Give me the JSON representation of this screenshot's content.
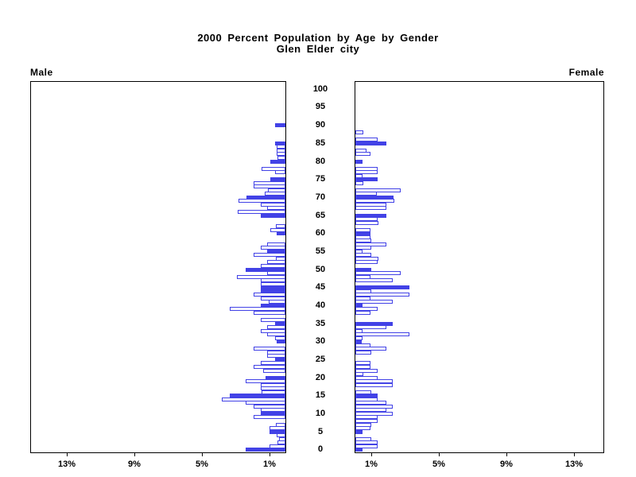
{
  "title": {
    "line1": "2000 Percent Population by Age by Gender",
    "line2": "Glen Elder city"
  },
  "panel_labels": {
    "left": "Male",
    "right": "Female"
  },
  "chart_data": {
    "type": "bar",
    "variant": "population-pyramid",
    "title": "2000 Percent Population by Age by Gender",
    "subtitle": "Glen Elder city",
    "unit": "percent of gender total, one bar per single year of age",
    "legend": "bars at ages that are multiples of five are drawn solid blue; other ages are white with blue outline",
    "colors": {
      "bar_outline": "#4242e6",
      "bar_fill": "#4242e6",
      "bar_empty_fill": "#ffffff",
      "frame": "#000000"
    },
    "x_axis": {
      "tick_percents": [
        1,
        5,
        9,
        13
      ],
      "tick_label_suffix": "%",
      "max_percent": 15.2,
      "left_panel_direction": "leftward",
      "right_panel_direction": "rightward"
    },
    "y_axis": {
      "min_age": 0,
      "max_age": 100,
      "label_step": 5,
      "tick_labels": [
        "0",
        "5",
        "10",
        "15",
        "20",
        "25",
        "30",
        "35",
        "40",
        "45",
        "50",
        "55",
        "60",
        "65",
        "70",
        "75",
        "80",
        "85",
        "90",
        "95",
        "100"
      ]
    },
    "series": [
      {
        "name": "Male",
        "side": "left",
        "bars": [
          [
            0,
            2.36,
            1
          ],
          [
            1,
            0.94,
            0
          ],
          [
            2,
            0.47,
            0
          ],
          [
            3,
            0.39,
            0
          ],
          [
            4,
            0.52,
            0
          ],
          [
            5,
            0.94,
            1
          ],
          [
            6,
            0.94,
            0
          ],
          [
            7,
            0.55,
            0
          ],
          [
            8,
            0,
            0
          ],
          [
            9,
            1.89,
            0
          ],
          [
            10,
            1.46,
            1
          ],
          [
            11,
            1.46,
            0
          ],
          [
            12,
            1.89,
            0
          ],
          [
            13,
            2.36,
            0
          ],
          [
            14,
            3.77,
            0
          ],
          [
            15,
            3.3,
            1
          ],
          [
            16,
            1.4,
            0
          ],
          [
            17,
            1.46,
            0
          ],
          [
            18,
            1.46,
            0
          ],
          [
            19,
            2.36,
            0
          ],
          [
            20,
            1.2,
            1
          ],
          [
            21,
            0,
            0
          ],
          [
            22,
            1.3,
            0
          ],
          [
            23,
            1.89,
            0
          ],
          [
            24,
            1.46,
            0
          ],
          [
            25,
            0.6,
            1
          ],
          [
            26,
            1.07,
            0
          ],
          [
            27,
            1.07,
            0
          ],
          [
            28,
            1.89,
            0
          ],
          [
            29,
            0,
            0
          ],
          [
            30,
            0.52,
            1
          ],
          [
            31,
            0.6,
            0
          ],
          [
            32,
            1.07,
            0
          ],
          [
            33,
            1.46,
            0
          ],
          [
            34,
            1.07,
            0
          ],
          [
            35,
            0.6,
            1
          ],
          [
            36,
            1.46,
            0
          ],
          [
            37,
            0,
            0
          ],
          [
            38,
            1.89,
            0
          ],
          [
            39,
            3.3,
            0
          ],
          [
            40,
            1.46,
            1
          ],
          [
            41,
            1.0,
            0
          ],
          [
            42,
            1.46,
            0
          ],
          [
            43,
            1.89,
            0
          ],
          [
            44,
            1.45,
            1
          ],
          [
            45,
            1.45,
            1
          ],
          [
            46,
            1.45,
            0
          ],
          [
            47,
            1.45,
            0
          ],
          [
            48,
            2.86,
            0
          ],
          [
            49,
            1.07,
            0
          ],
          [
            50,
            2.36,
            1
          ],
          [
            51,
            1.45,
            0
          ],
          [
            52,
            1.07,
            0
          ],
          [
            53,
            0.55,
            0
          ],
          [
            54,
            1.89,
            0
          ],
          [
            55,
            1.1,
            1
          ],
          [
            56,
            1.45,
            0
          ],
          [
            57,
            1.07,
            0
          ],
          [
            58,
            0,
            0
          ],
          [
            59,
            0,
            0
          ],
          [
            60,
            0.52,
            1
          ],
          [
            61,
            0.91,
            0
          ],
          [
            62,
            0.55,
            0
          ],
          [
            63,
            0,
            0
          ],
          [
            64,
            0,
            0
          ],
          [
            65,
            1.45,
            1
          ],
          [
            66,
            2.83,
            0
          ],
          [
            67,
            1.07,
            0
          ],
          [
            68,
            1.45,
            0
          ],
          [
            69,
            2.8,
            0
          ],
          [
            70,
            2.33,
            1
          ],
          [
            71,
            1.23,
            0
          ],
          [
            72,
            1.02,
            0
          ],
          [
            73,
            1.88,
            0
          ],
          [
            74,
            1.88,
            0
          ],
          [
            75,
            0.91,
            1
          ],
          [
            76,
            0,
            0
          ],
          [
            77,
            0.6,
            0
          ],
          [
            78,
            1.4,
            0
          ],
          [
            79,
            0,
            0
          ],
          [
            80,
            0.91,
            1
          ],
          [
            81,
            0.45,
            0
          ],
          [
            82,
            0.5,
            0
          ],
          [
            83,
            0.5,
            0
          ],
          [
            84,
            0.5,
            0
          ],
          [
            85,
            0.6,
            1
          ],
          [
            86,
            0,
            0
          ],
          [
            87,
            0,
            0
          ],
          [
            88,
            0,
            0
          ],
          [
            89,
            0,
            0
          ],
          [
            90,
            0.6,
            1
          ]
        ]
      },
      {
        "name": "Female",
        "side": "right",
        "bars": [
          [
            0,
            0.44,
            1
          ],
          [
            1,
            1.33,
            0
          ],
          [
            2,
            1.33,
            0
          ],
          [
            3,
            0.94,
            0
          ],
          [
            4,
            0,
            0
          ],
          [
            5,
            0.44,
            1
          ],
          [
            6,
            0.91,
            0
          ],
          [
            7,
            0.94,
            0
          ],
          [
            8,
            1.33,
            0
          ],
          [
            9,
            1.33,
            0
          ],
          [
            10,
            2.23,
            0
          ],
          [
            11,
            1.84,
            0
          ],
          [
            12,
            2.23,
            0
          ],
          [
            13,
            1.84,
            0
          ],
          [
            14,
            1.33,
            0
          ],
          [
            15,
            1.33,
            1
          ],
          [
            16,
            0.94,
            0
          ],
          [
            17,
            0,
            0
          ],
          [
            18,
            2.23,
            0
          ],
          [
            19,
            2.23,
            0
          ],
          [
            20,
            1.33,
            0
          ],
          [
            21,
            0.47,
            0
          ],
          [
            22,
            1.3,
            0
          ],
          [
            23,
            0.91,
            0
          ],
          [
            24,
            0.91,
            0
          ],
          [
            25,
            0,
            0
          ],
          [
            26,
            0,
            0
          ],
          [
            27,
            0.94,
            0
          ],
          [
            28,
            1.84,
            0
          ],
          [
            29,
            0.91,
            0
          ],
          [
            30,
            0.39,
            1
          ],
          [
            31,
            0.44,
            0
          ],
          [
            32,
            3.19,
            0
          ],
          [
            33,
            0.44,
            0
          ],
          [
            34,
            1.84,
            0
          ],
          [
            35,
            2.23,
            1
          ],
          [
            36,
            0,
            0
          ],
          [
            37,
            0,
            0
          ],
          [
            38,
            0.91,
            0
          ],
          [
            39,
            1.33,
            0
          ],
          [
            40,
            0.44,
            1
          ],
          [
            41,
            2.23,
            0
          ],
          [
            42,
            0.91,
            0
          ],
          [
            43,
            3.19,
            0
          ],
          [
            44,
            0.94,
            0
          ],
          [
            45,
            3.19,
            1
          ],
          [
            46,
            0,
            0
          ],
          [
            47,
            2.23,
            0
          ],
          [
            48,
            0.91,
            0
          ],
          [
            49,
            2.7,
            0
          ],
          [
            50,
            0.94,
            1
          ],
          [
            51,
            0,
            0
          ],
          [
            52,
            1.33,
            0
          ],
          [
            53,
            1.38,
            0
          ],
          [
            54,
            0.94,
            0
          ],
          [
            55,
            0.44,
            0
          ],
          [
            56,
            0.94,
            0
          ],
          [
            57,
            1.84,
            0
          ],
          [
            58,
            0.94,
            0
          ],
          [
            59,
            0.91,
            0
          ],
          [
            60,
            0.91,
            1
          ],
          [
            61,
            0.91,
            0
          ],
          [
            62,
            0,
            0
          ],
          [
            63,
            1.38,
            0
          ],
          [
            64,
            1.33,
            0
          ],
          [
            65,
            1.84,
            1
          ],
          [
            66,
            0,
            0
          ],
          [
            67,
            1.84,
            0
          ],
          [
            68,
            1.84,
            0
          ],
          [
            69,
            2.31,
            0
          ],
          [
            70,
            2.25,
            1
          ],
          [
            71,
            1.26,
            0
          ],
          [
            72,
            2.7,
            0
          ],
          [
            73,
            0,
            0
          ],
          [
            74,
            0.47,
            0
          ],
          [
            75,
            1.33,
            1
          ],
          [
            76,
            0.44,
            0
          ],
          [
            77,
            1.33,
            0
          ],
          [
            78,
            1.33,
            0
          ],
          [
            79,
            0,
            0
          ],
          [
            80,
            0.44,
            1
          ],
          [
            81,
            0,
            0
          ],
          [
            82,
            0.91,
            0
          ],
          [
            83,
            0.66,
            0
          ],
          [
            84,
            0,
            0
          ],
          [
            85,
            1.84,
            1
          ],
          [
            86,
            1.33,
            0
          ],
          [
            87,
            0,
            0
          ],
          [
            88,
            0.47,
            0
          ]
        ]
      }
    ]
  }
}
